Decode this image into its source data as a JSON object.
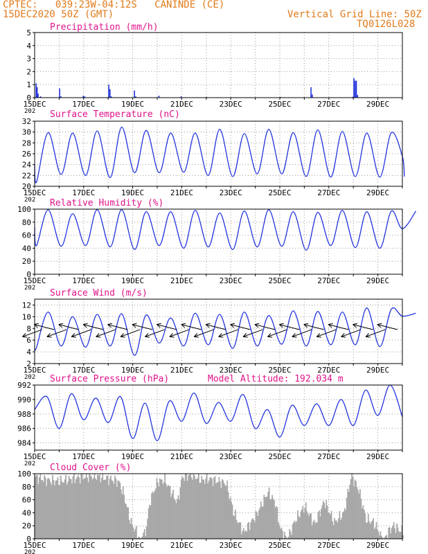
{
  "header": {
    "line1": "CPTEC:   039:23W-04:12S   CANINDE (CE)",
    "line2": "15DEC2020 50Z (GMT)",
    "grid_note": "Vertical Grid Line: 50Z",
    "code": "TQ0126L028"
  },
  "colors": {
    "header": "#e07a1a",
    "title": "#e0128a",
    "series": "#2233dd",
    "cloud": "#a8a8a8",
    "grid": "#9a9a9a",
    "wind_arrow": "#000000"
  },
  "x_axis": {
    "labels": [
      "15DEC",
      "17DEC",
      "19DEC",
      "21DEC",
      "23DEC",
      "25DEC",
      "27DEC",
      "29DEC"
    ],
    "label_days": [
      0,
      2,
      4,
      6,
      8,
      10,
      12,
      14
    ],
    "year_stub": "202",
    "day_range": [
      0,
      15
    ]
  },
  "chart_data": [
    {
      "type": "bar",
      "title": "Precipitation (mm/h)",
      "ylim": [
        0,
        5
      ],
      "yticks": [
        "0",
        "1",
        "2",
        "3",
        "4",
        "5"
      ],
      "grid": true,
      "points": [
        [
          0.04,
          1.1
        ],
        [
          0.08,
          0.8
        ],
        [
          0.12,
          0.3
        ],
        [
          0.22,
          0.1
        ],
        [
          1.0,
          0.7
        ],
        [
          1.05,
          0.1
        ],
        [
          1.96,
          0.15
        ],
        [
          2.02,
          0.1
        ],
        [
          3.0,
          1.0
        ],
        [
          3.05,
          0.65
        ],
        [
          3.1,
          0.1
        ],
        [
          4.05,
          0.55
        ],
        [
          4.1,
          0.1
        ],
        [
          5.05,
          0.15
        ],
        [
          5.95,
          0.1
        ],
        [
          7.0,
          0.05
        ],
        [
          10.0,
          0.05
        ],
        [
          11.25,
          0.8
        ],
        [
          11.3,
          0.25
        ],
        [
          12.95,
          0.06
        ],
        [
          13.0,
          1.5
        ],
        [
          13.05,
          1.3
        ],
        [
          13.1,
          1.3
        ],
        [
          13.15,
          0.2
        ]
      ]
    },
    {
      "type": "line",
      "title": "Surface Temperature (nC)",
      "ylim": [
        20,
        32
      ],
      "yticks": [
        "20",
        "22",
        "24",
        "26",
        "28",
        "30",
        "32"
      ],
      "grid": true,
      "diurnal": {
        "max": [
          29.9,
          29.8,
          30.2,
          30.9,
          30.3,
          29.8,
          29.8,
          30.5,
          29.7,
          30.5,
          29.9,
          30.4,
          30.1,
          29.8,
          29.9
        ],
        "min": [
          20.8,
          22.2,
          22.0,
          21.6,
          22.5,
          22.5,
          22.6,
          22.0,
          21.8,
          22.3,
          22.3,
          21.8,
          21.7,
          21.8,
          21.7,
          21.8
        ],
        "start": 24.0,
        "end": 25.5
      }
    },
    {
      "type": "line",
      "title": "Relative Humidity (%)",
      "ylim": [
        0,
        100
      ],
      "yticks": [
        "0",
        "20",
        "40",
        "60",
        "80",
        "100"
      ],
      "grid": true,
      "diurnal": {
        "max": [
          99,
          93,
          99,
          99,
          96,
          96,
          98,
          94,
          97,
          99,
          96,
          95,
          98,
          96,
          97,
          97
        ],
        "min": [
          44,
          43,
          44,
          42,
          38,
          44,
          40,
          42,
          38,
          42,
          43,
          37,
          44,
          41,
          40
        ],
        "start": 72,
        "end": 70
      }
    },
    {
      "type": "line",
      "title": "Surface Wind (m/s)",
      "ylim": [
        2,
        13
      ],
      "yticks": [
        "2",
        "4",
        "6",
        "8",
        "10",
        "12"
      ],
      "grid": true,
      "diurnal": {
        "max": [
          10.8,
          10.0,
          10.4,
          10.5,
          10.3,
          9.8,
          10.6,
          10.4,
          10.8,
          10.2,
          11.0,
          10.9,
          10.8,
          11.5,
          11.3,
          10.6
        ],
        "min": [
          4.8,
          5.0,
          4.8,
          5.0,
          3.4,
          5.5,
          5.0,
          5.2,
          4.6,
          5.0,
          5.3,
          5.0,
          5.2,
          5.2,
          4.9
        ],
        "start": 4.5,
        "end": 10.1
      },
      "wind_arrows": {
        "every_hours": 12,
        "direction": "from the east (arrows pointing west)"
      }
    },
    {
      "type": "line",
      "title": "Surface Pressure (hPa)",
      "annotation": "Model Altitude: 192.034 m",
      "ylim": [
        983,
        992
      ],
      "yticks": [
        "984",
        "986",
        "988",
        "990",
        "992"
      ],
      "grid": true,
      "points": [
        [
          0,
          988.6
        ],
        [
          0.5,
          990.4
        ],
        [
          1,
          986.0
        ],
        [
          1.5,
          990.8
        ],
        [
          2,
          987.2
        ],
        [
          2.5,
          990.2
        ],
        [
          3,
          986.8
        ],
        [
          3.5,
          990.4
        ],
        [
          4,
          984.6
        ],
        [
          4.5,
          989.5
        ],
        [
          5,
          984.3
        ],
        [
          5.5,
          989.8
        ],
        [
          6,
          987.0
        ],
        [
          6.5,
          990.9
        ],
        [
          7,
          986.7
        ],
        [
          7.5,
          989.6
        ],
        [
          8,
          987.0
        ],
        [
          8.5,
          990.7
        ],
        [
          9,
          986.0
        ],
        [
          9.5,
          988.6
        ],
        [
          10,
          984.8
        ],
        [
          10.5,
          989.2
        ],
        [
          11,
          986.4
        ],
        [
          11.5,
          989.4
        ],
        [
          12,
          986.4
        ],
        [
          12.5,
          990.0
        ],
        [
          13,
          986.4
        ],
        [
          13.5,
          991.3
        ],
        [
          14,
          987.8
        ],
        [
          14.5,
          992.0
        ],
        [
          15,
          987.6
        ]
      ]
    },
    {
      "type": "area",
      "title": "Cloud Cover (%)",
      "ylim": [
        0,
        100
      ],
      "yticks": [
        "0",
        "20",
        "40",
        "60",
        "80",
        "100"
      ],
      "grid": true,
      "points": [
        [
          0,
          95
        ],
        [
          0.5,
          90
        ],
        [
          1,
          88
        ],
        [
          1.5,
          92
        ],
        [
          2,
          95
        ],
        [
          2.5,
          96
        ],
        [
          3,
          92
        ],
        [
          3.4,
          88
        ],
        [
          3.6,
          70
        ],
        [
          3.9,
          25
        ],
        [
          4.3,
          0
        ],
        [
          4.5,
          10
        ],
        [
          4.7,
          60
        ],
        [
          5,
          88
        ],
        [
          5.3,
          90
        ],
        [
          5.8,
          55
        ],
        [
          6,
          95
        ],
        [
          6.4,
          98
        ],
        [
          6.8,
          90
        ],
        [
          7.1,
          92
        ],
        [
          7.5,
          88
        ],
        [
          7.8,
          85
        ],
        [
          8.1,
          40
        ],
        [
          8.5,
          10
        ],
        [
          9,
          35
        ],
        [
          9.5,
          72
        ],
        [
          9.8,
          55
        ],
        [
          10,
          15
        ],
        [
          10.3,
          0
        ],
        [
          10.6,
          28
        ],
        [
          11,
          50
        ],
        [
          11.4,
          22
        ],
        [
          11.8,
          58
        ],
        [
          12.2,
          25
        ],
        [
          12.6,
          40
        ],
        [
          12.9,
          98
        ],
        [
          13.2,
          75
        ],
        [
          13.5,
          30
        ],
        [
          13.8,
          25
        ],
        [
          14.2,
          0
        ],
        [
          14.6,
          20
        ],
        [
          15,
          10
        ]
      ]
    }
  ]
}
